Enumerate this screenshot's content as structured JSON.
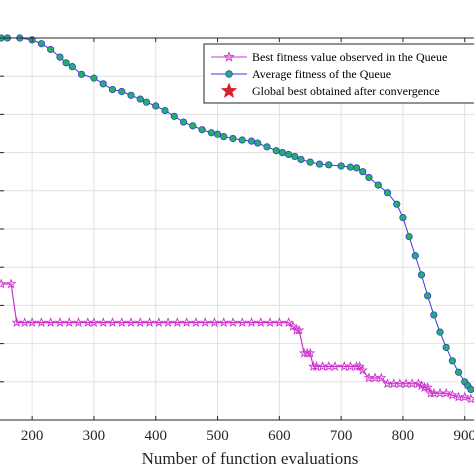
{
  "chart_data": {
    "type": "line",
    "xlabel": "Number of function evaluations",
    "ylabel": "",
    "xlim": [
      148,
      915
    ],
    "ylim": [
      0,
      1
    ],
    "grid": true,
    "legend_position": "top-right",
    "x_ticks": [
      200,
      300,
      400,
      500,
      600,
      700,
      800,
      900
    ],
    "x_tick_labels": [
      "200",
      "300",
      "400",
      "500",
      "600",
      "700",
      "800",
      "900"
    ],
    "series": [
      {
        "name": "Best fitness value observed in the Queue",
        "color": "#cc33cc",
        "marker": "star",
        "x": [
          150,
          166,
          175,
          188,
          200,
          215,
          230,
          245,
          260,
          275,
          290,
          300,
          315,
          330,
          345,
          360,
          375,
          390,
          405,
          420,
          435,
          450,
          465,
          480,
          495,
          510,
          525,
          540,
          555,
          570,
          585,
          600,
          615,
          622,
          628,
          632,
          640,
          645,
          650,
          655,
          660,
          670,
          680,
          690,
          705,
          715,
          725,
          730,
          735,
          745,
          755,
          765,
          775,
          785,
          795,
          805,
          815,
          825,
          830,
          835,
          840,
          845,
          850,
          860,
          870,
          880,
          890,
          900,
          910
        ],
        "y": [
          0.356,
          0.356,
          0.255,
          0.255,
          0.255,
          0.255,
          0.255,
          0.255,
          0.255,
          0.255,
          0.255,
          0.255,
          0.255,
          0.255,
          0.255,
          0.255,
          0.255,
          0.255,
          0.255,
          0.255,
          0.255,
          0.255,
          0.255,
          0.255,
          0.255,
          0.255,
          0.255,
          0.255,
          0.255,
          0.255,
          0.255,
          0.255,
          0.255,
          0.245,
          0.235,
          0.235,
          0.175,
          0.175,
          0.175,
          0.14,
          0.14,
          0.14,
          0.14,
          0.14,
          0.14,
          0.14,
          0.14,
          0.14,
          0.13,
          0.11,
          0.11,
          0.11,
          0.095,
          0.095,
          0.095,
          0.095,
          0.095,
          0.095,
          0.09,
          0.085,
          0.085,
          0.07,
          0.07,
          0.07,
          0.07,
          0.065,
          0.06,
          0.06,
          0.055
        ]
      },
      {
        "name": "Average fitness of the Queue",
        "color": "#3a3ad8",
        "marker_color": "#21b364",
        "marker": "circle",
        "x": [
          150,
          160,
          180,
          200,
          215,
          230,
          245,
          255,
          265,
          280,
          300,
          315,
          330,
          345,
          360,
          375,
          385,
          400,
          415,
          430,
          445,
          460,
          475,
          490,
          500,
          510,
          525,
          540,
          555,
          565,
          580,
          595,
          605,
          615,
          625,
          635,
          650,
          665,
          680,
          700,
          715,
          725,
          735,
          745,
          760,
          775,
          790,
          800,
          810,
          820,
          830,
          840,
          850,
          860,
          870,
          880,
          890,
          900,
          905,
          910
        ],
        "y": [
          1.0,
          1.0,
          1.0,
          0.995,
          0.985,
          0.97,
          0.95,
          0.935,
          0.925,
          0.905,
          0.895,
          0.88,
          0.865,
          0.86,
          0.85,
          0.84,
          0.832,
          0.822,
          0.81,
          0.795,
          0.78,
          0.77,
          0.76,
          0.752,
          0.748,
          0.742,
          0.737,
          0.733,
          0.73,
          0.725,
          0.715,
          0.705,
          0.7,
          0.695,
          0.69,
          0.682,
          0.675,
          0.67,
          0.668,
          0.665,
          0.662,
          0.66,
          0.65,
          0.635,
          0.615,
          0.595,
          0.565,
          0.53,
          0.48,
          0.43,
          0.38,
          0.325,
          0.275,
          0.23,
          0.19,
          0.155,
          0.125,
          0.1,
          0.09,
          0.08
        ]
      },
      {
        "name": "Global best obtained after convergence",
        "color": "#d91e2b",
        "marker": "star",
        "x": [],
        "y": []
      }
    ]
  }
}
